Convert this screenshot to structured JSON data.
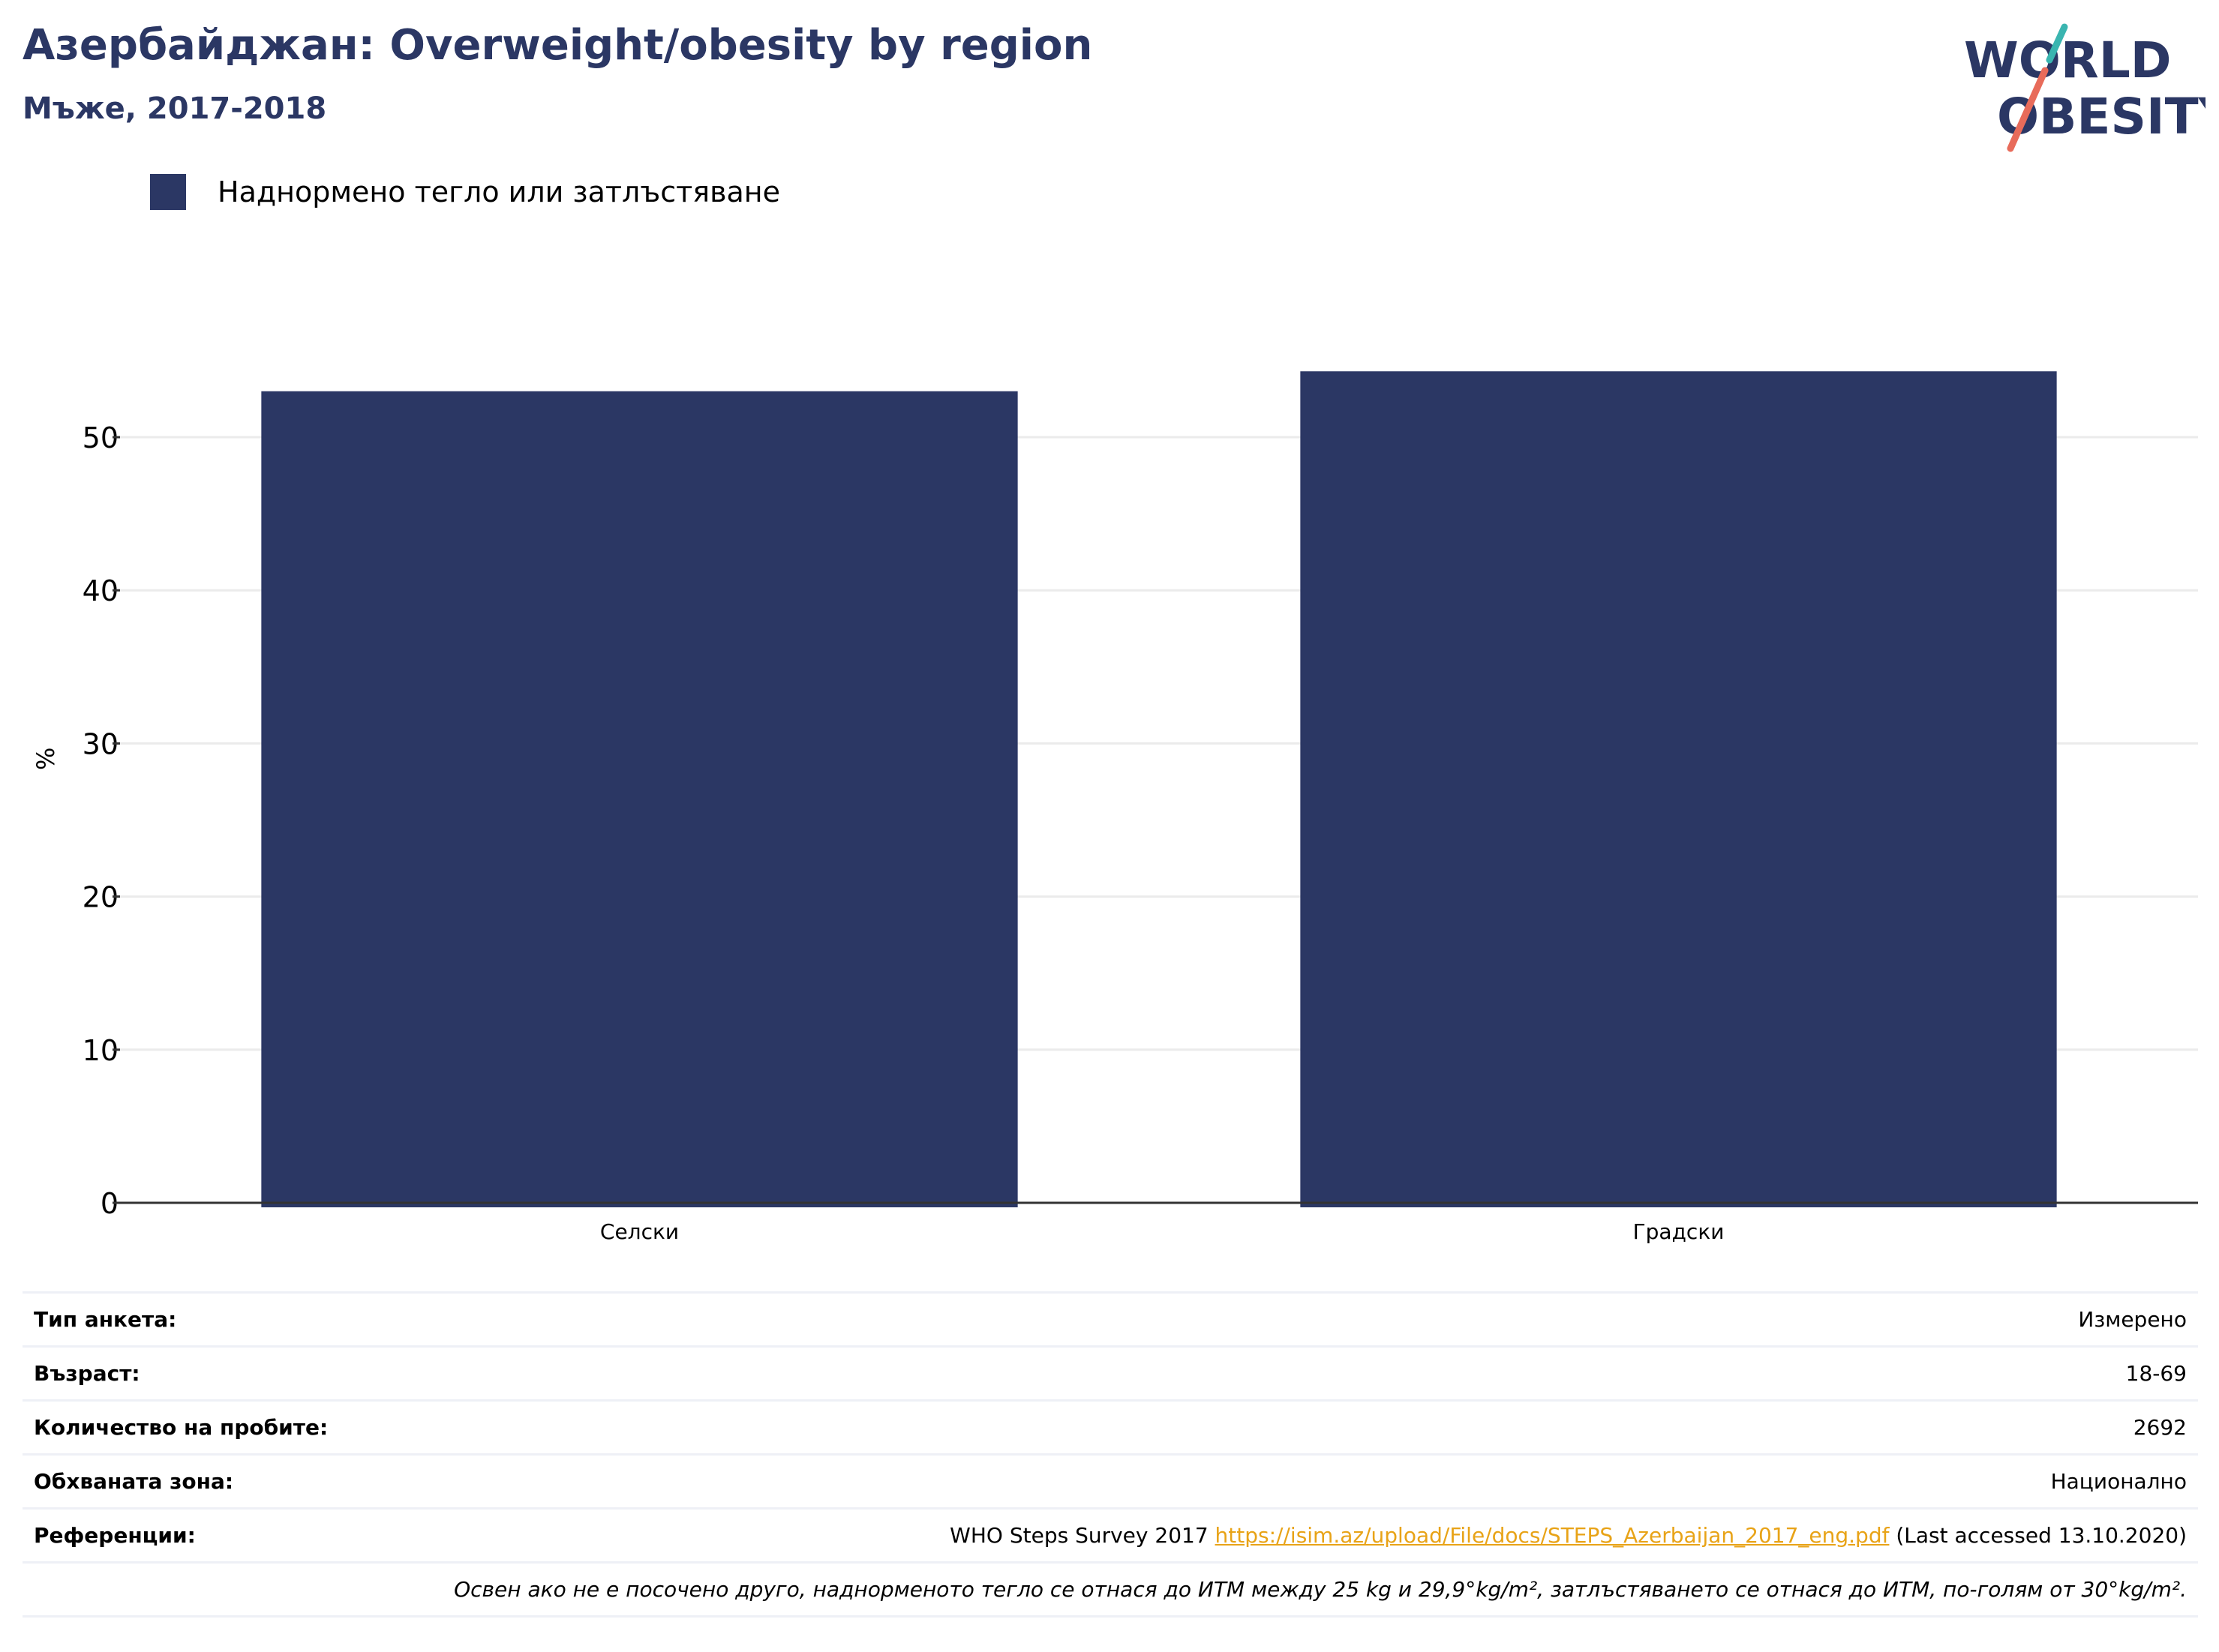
{
  "title": "Азербайджан: Overweight/obesity by region",
  "subtitle": "Мъже, 2017-2018",
  "logo": {
    "line1": "WORLD",
    "line2": "OBESITY"
  },
  "colors": {
    "bar": "#2b3764",
    "title": "#2b3764",
    "link": "#e8a317",
    "grid": "#ebebeb",
    "axis": "#333333",
    "logo_teal": "#3ab5b0",
    "logo_coral": "#e86b5a"
  },
  "chart_data": {
    "type": "bar",
    "categories": [
      "Селски",
      "Градски"
    ],
    "series": [
      {
        "name": "Наднормено тегло или затлъстяване",
        "values": [
          53.0,
          54.3
        ]
      }
    ],
    "ylabel": "%",
    "xlabel": "",
    "ylim": [
      0,
      58
    ],
    "yticks": [
      0,
      10,
      20,
      30,
      40,
      50
    ],
    "grid": true,
    "legend": "top-left"
  },
  "info": {
    "rows": [
      {
        "key": "Тип анкета:",
        "value": "Измерено"
      },
      {
        "key": "Възраст:",
        "value": "18-69"
      },
      {
        "key": "Количество на пробите:",
        "value": "2692"
      },
      {
        "key": "Обхваната зона:",
        "value": "Национално"
      }
    ],
    "reference": {
      "key": "Референции:",
      "pre": "WHO Steps Survey 2017 ",
      "link": "https://isim.az/upload/File/docs/STEPS_Azerbaijan_2017_eng.pdf",
      "post": " (Last accessed 13.10.2020)"
    },
    "note": "Освен ако не е посочено друго, наднорменото тегло се отнася до ИТМ между 25 kg и 29,9°kg/m², затлъстяването се отнася до ИТМ, по-голям от 30°kg/m²."
  }
}
